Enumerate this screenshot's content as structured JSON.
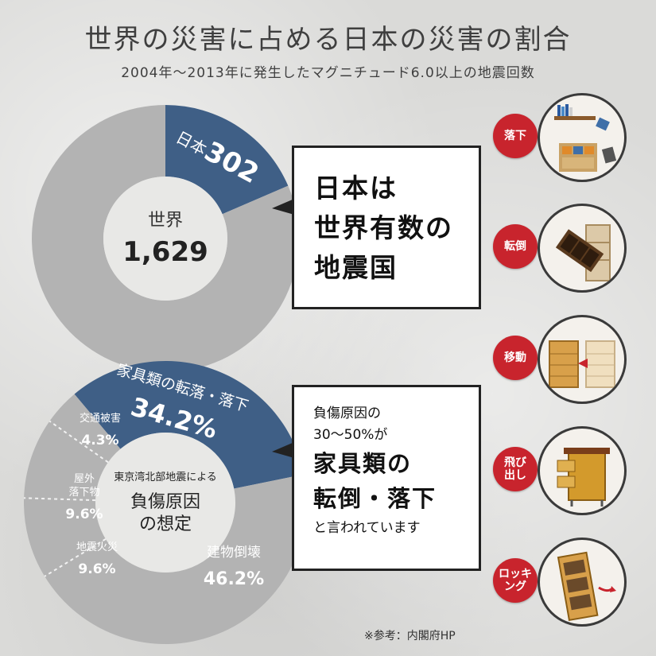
{
  "header": {
    "title": "世界の災害に占める日本の災害の割合",
    "subtitle": "2004年〜2013年に発生したマグニチュード6.0以上の地震回数"
  },
  "chart_data": [
    {
      "type": "pie",
      "slices": [
        {
          "label": "日本",
          "value": 302,
          "value_label": "302",
          "color": "#3f5f86"
        },
        {
          "label": "",
          "value": 1327,
          "color": "#b3b3b3"
        }
      ],
      "center_label": "世界",
      "center_value": "1,629"
    },
    {
      "type": "pie",
      "center_label_lines": [
        "東京湾北部地震による",
        "負傷原因",
        "の想定"
      ],
      "slices": [
        {
          "label": "家具類の転落・落下",
          "value": 34.2,
          "value_label": "34.2%",
          "color": "#3f5f86"
        },
        {
          "label": "建物倒壊",
          "value": 46.2,
          "value_label": "46.2%",
          "color": "#b3b3b3"
        },
        {
          "label": "地震火災",
          "value": 9.6,
          "value_label": "9.6%",
          "color": "#b3b3b3"
        },
        {
          "label": "屋外\n落下物",
          "value": 9.6,
          "value_label": "9.6%",
          "color": "#b3b3b3"
        },
        {
          "label": "交通被害",
          "value": 4.3,
          "value_label": "4.3%",
          "color": "#b3b3b3"
        }
      ]
    }
  ],
  "callout_top": {
    "lines": [
      "日本は",
      "世界有数の",
      "地震国"
    ]
  },
  "callout_bottom": {
    "line1": "負傷原因の",
    "line2": "30〜50%が",
    "big1": "家具類の",
    "big2": "転倒・落下",
    "tail": "と言われています"
  },
  "source": "※参考：内閣府HP",
  "illustrations": [
    {
      "badge": "落下",
      "icon": "falling-items-icon"
    },
    {
      "badge": "転倒",
      "icon": "toppling-shelf-icon"
    },
    {
      "badge": "移動",
      "icon": "moving-chest-icon"
    },
    {
      "badge": "飛び\n出し",
      "icon": "drawers-sliding-out-icon"
    },
    {
      "badge": "ロッキ\nング",
      "icon": "rocking-furniture-icon"
    }
  ]
}
